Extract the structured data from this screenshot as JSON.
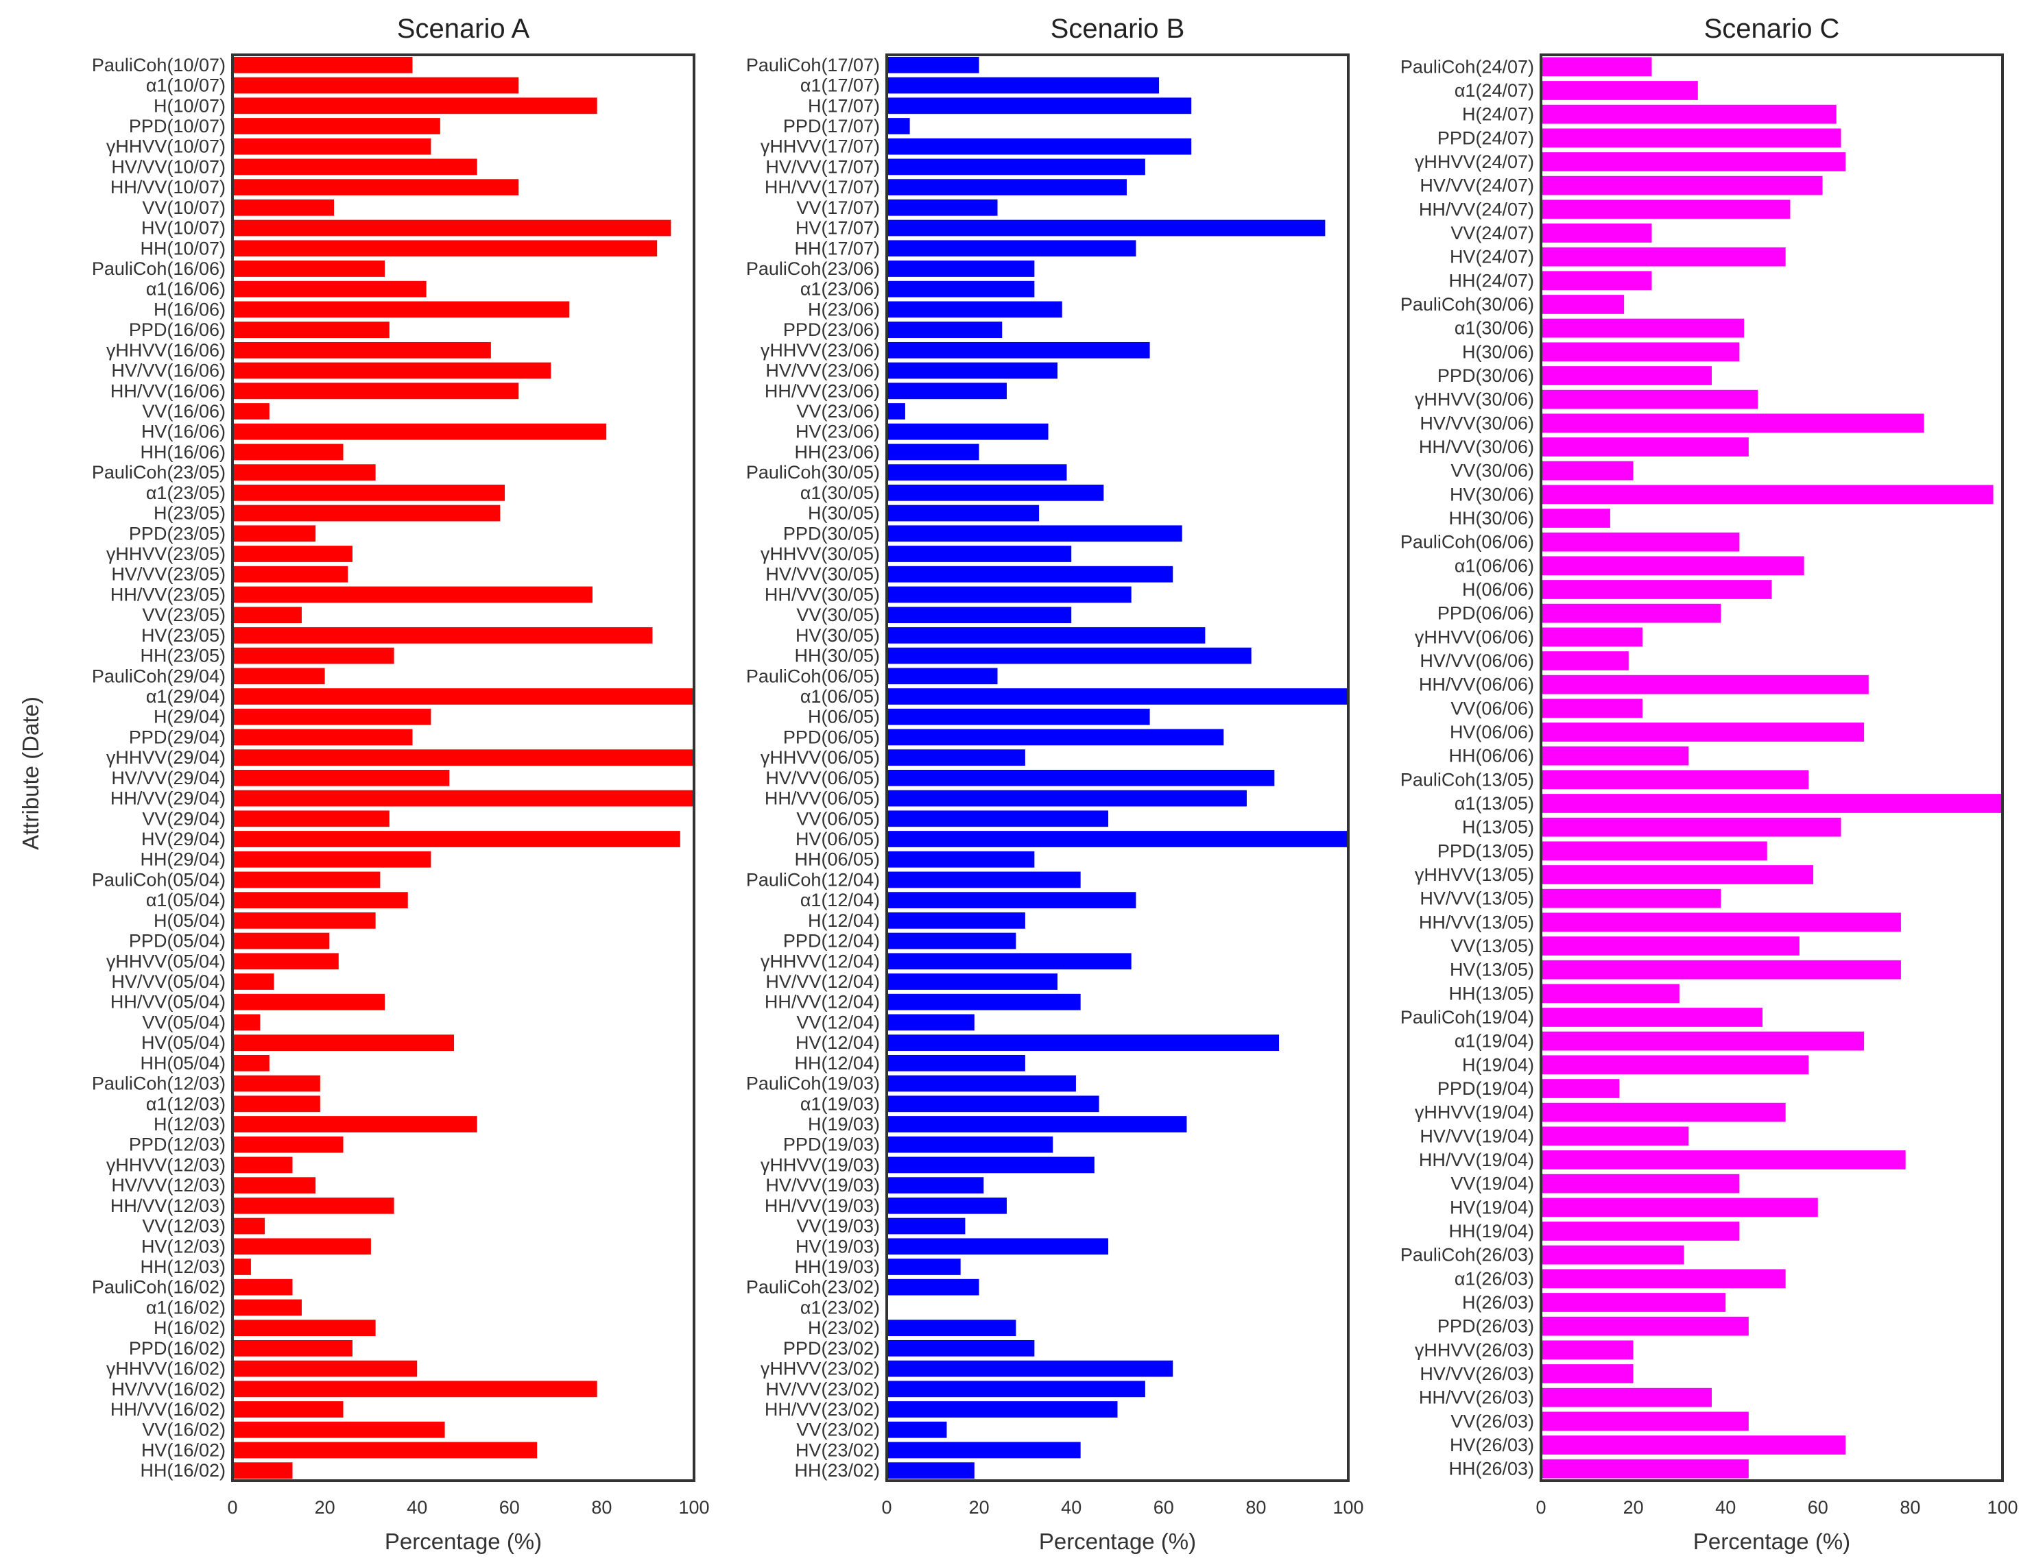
{
  "shared": {
    "ylabel": "Attribute (Date)",
    "xlabel": "Percentage (%)",
    "xticks": [
      "0",
      "20",
      "40",
      "60",
      "80",
      "100"
    ]
  },
  "chart_data": [
    {
      "type": "bar",
      "orientation": "horizontal",
      "title": "Scenario A",
      "xlabel": "Percentage (%)",
      "ylabel": "Attribute (Date)",
      "xlim": [
        0,
        100
      ],
      "color": "#ff0000",
      "categories": [
        "PauliCoh(10/07)",
        "α1(10/07)",
        "H(10/07)",
        "PPD(10/07)",
        "γHHVV(10/07)",
        "HV/VV(10/07)",
        "HH/VV(10/07)",
        "VV(10/07)",
        "HV(10/07)",
        "HH(10/07)",
        "PauliCoh(16/06)",
        "α1(16/06)",
        "H(16/06)",
        "PPD(16/06)",
        "γHHVV(16/06)",
        "HV/VV(16/06)",
        "HH/VV(16/06)",
        "VV(16/06)",
        "HV(16/06)",
        "HH(16/06)",
        "PauliCoh(23/05)",
        "α1(23/05)",
        "H(23/05)",
        "PPD(23/05)",
        "γHHVV(23/05)",
        "HV/VV(23/05)",
        "HH/VV(23/05)",
        "VV(23/05)",
        "HV(23/05)",
        "HH(23/05)",
        "PauliCoh(29/04)",
        "α1(29/04)",
        "H(29/04)",
        "PPD(29/04)",
        "γHHVV(29/04)",
        "HV/VV(29/04)",
        "HH/VV(29/04)",
        "VV(29/04)",
        "HV(29/04)",
        "HH(29/04)",
        "PauliCoh(05/04)",
        "α1(05/04)",
        "H(05/04)",
        "PPD(05/04)",
        "γHHVV(05/04)",
        "HV/VV(05/04)",
        "HH/VV(05/04)",
        "VV(05/04)",
        "HV(05/04)",
        "HH(05/04)",
        "PauliCoh(12/03)",
        "α1(12/03)",
        "H(12/03)",
        "PPD(12/03)",
        "γHHVV(12/03)",
        "HV/VV(12/03)",
        "HH/VV(12/03)",
        "VV(12/03)",
        "HV(12/03)",
        "HH(12/03)",
        "PauliCoh(16/02)",
        "α1(16/02)",
        "H(16/02)",
        "PPD(16/02)",
        "γHHVV(16/02)",
        "HV/VV(16/02)",
        "HH/VV(16/02)",
        "VV(16/02)",
        "HV(16/02)",
        "HH(16/02)"
      ],
      "values": [
        39,
        62,
        79,
        45,
        43,
        53,
        62,
        22,
        95,
        92,
        33,
        42,
        73,
        34,
        56,
        69,
        62,
        8,
        81,
        24,
        31,
        59,
        58,
        18,
        26,
        25,
        78,
        15,
        91,
        35,
        20,
        100,
        43,
        39,
        100,
        47,
        100,
        34,
        97,
        43,
        32,
        38,
        31,
        21,
        23,
        9,
        33,
        6,
        48,
        8,
        19,
        19,
        53,
        24,
        13,
        18,
        35,
        7,
        30,
        4,
        13,
        15,
        31,
        26,
        40,
        79,
        24,
        46,
        66,
        13
      ]
    },
    {
      "type": "bar",
      "orientation": "horizontal",
      "title": "Scenario B",
      "xlabel": "Percentage (%)",
      "xlim": [
        0,
        100
      ],
      "color": "#0000ff",
      "categories": [
        "PauliCoh(17/07)",
        "α1(17/07)",
        "H(17/07)",
        "PPD(17/07)",
        "γHHVV(17/07)",
        "HV/VV(17/07)",
        "HH/VV(17/07)",
        "VV(17/07)",
        "HV(17/07)",
        "HH(17/07)",
        "PauliCoh(23/06)",
        "α1(23/06)",
        "H(23/06)",
        "PPD(23/06)",
        "γHHVV(23/06)",
        "HV/VV(23/06)",
        "HH/VV(23/06)",
        "VV(23/06)",
        "HV(23/06)",
        "HH(23/06)",
        "PauliCoh(30/05)",
        "α1(30/05)",
        "H(30/05)",
        "PPD(30/05)",
        "γHHVV(30/05)",
        "HV/VV(30/05)",
        "HH/VV(30/05)",
        "VV(30/05)",
        "HV(30/05)",
        "HH(30/05)",
        "PauliCoh(06/05)",
        "α1(06/05)",
        "H(06/05)",
        "PPD(06/05)",
        "γHHVV(06/05)",
        "HV/VV(06/05)",
        "HH/VV(06/05)",
        "VV(06/05)",
        "HV(06/05)",
        "HH(06/05)",
        "PauliCoh(12/04)",
        "α1(12/04)",
        "H(12/04)",
        "PPD(12/04)",
        "γHHVV(12/04)",
        "HV/VV(12/04)",
        "HH/VV(12/04)",
        "VV(12/04)",
        "HV(12/04)",
        "HH(12/04)",
        "PauliCoh(19/03)",
        "α1(19/03)",
        "H(19/03)",
        "PPD(19/03)",
        "γHHVV(19/03)",
        "HV/VV(19/03)",
        "HH/VV(19/03)",
        "VV(19/03)",
        "HV(19/03)",
        "HH(19/03)",
        "PauliCoh(23/02)",
        "α1(23/02)",
        "H(23/02)",
        "PPD(23/02)",
        "γHHVV(23/02)",
        "HV/VV(23/02)",
        "HH/VV(23/02)",
        "VV(23/02)",
        "HV(23/02)",
        "HH(23/02)"
      ],
      "values": [
        20,
        59,
        66,
        5,
        66,
        56,
        52,
        24,
        95,
        54,
        32,
        32,
        38,
        25,
        57,
        37,
        26,
        4,
        35,
        20,
        39,
        47,
        33,
        64,
        40,
        62,
        53,
        40,
        69,
        79,
        24,
        100,
        57,
        73,
        30,
        84,
        78,
        48,
        100,
        32,
        42,
        54,
        30,
        28,
        53,
        37,
        42,
        19,
        85,
        30,
        41,
        46,
        65,
        36,
        45,
        21,
        26,
        17,
        48,
        16,
        20,
        0,
        28,
        32,
        62,
        56,
        50,
        13,
        42,
        19
      ]
    },
    {
      "type": "bar",
      "orientation": "horizontal",
      "title": "Scenario C",
      "xlabel": "Percentage (%)",
      "xlim": [
        0,
        100
      ],
      "color": "#ff00ff",
      "categories": [
        "PauliCoh(24/07)",
        "α1(24/07)",
        "H(24/07)",
        "PPD(24/07)",
        "γHHVV(24/07)",
        "HV/VV(24/07)",
        "HH/VV(24/07)",
        "VV(24/07)",
        "HV(24/07)",
        "HH(24/07)",
        "PauliCoh(30/06)",
        "α1(30/06)",
        "H(30/06)",
        "PPD(30/06)",
        "γHHVV(30/06)",
        "HV/VV(30/06)",
        "HH/VV(30/06)",
        "VV(30/06)",
        "HV(30/06)",
        "HH(30/06)",
        "PauliCoh(06/06)",
        "α1(06/06)",
        "H(06/06)",
        "PPD(06/06)",
        "γHHVV(06/06)",
        "HV/VV(06/06)",
        "HH/VV(06/06)",
        "VV(06/06)",
        "HV(06/06)",
        "HH(06/06)",
        "PauliCoh(13/05)",
        "α1(13/05)",
        "H(13/05)",
        "PPD(13/05)",
        "γHHVV(13/05)",
        "HV/VV(13/05)",
        "HH/VV(13/05)",
        "VV(13/05)",
        "HV(13/05)",
        "HH(13/05)",
        "PauliCoh(19/04)",
        "α1(19/04)",
        "H(19/04)",
        "PPD(19/04)",
        "γHHVV(19/04)",
        "HV/VV(19/04)",
        "HH/VV(19/04)",
        "VV(19/04)",
        "HV(19/04)",
        "HH(19/04)",
        "PauliCoh(26/03)",
        "α1(26/03)",
        "H(26/03)",
        "PPD(26/03)",
        "γHHVV(26/03)",
        "HV/VV(26/03)",
        "HH/VV(26/03)",
        "VV(26/03)",
        "HV(26/03)",
        "HH(26/03)"
      ],
      "values": [
        24,
        34,
        64,
        65,
        66,
        61,
        54,
        24,
        53,
        24,
        18,
        44,
        43,
        37,
        47,
        83,
        45,
        20,
        98,
        15,
        43,
        57,
        50,
        39,
        22,
        19,
        71,
        22,
        70,
        32,
        58,
        100,
        65,
        49,
        59,
        39,
        78,
        56,
        78,
        30,
        48,
        70,
        58,
        17,
        53,
        32,
        79,
        43,
        60,
        43,
        31,
        53,
        40,
        45,
        20,
        20,
        37,
        45,
        66,
        45
      ]
    }
  ]
}
